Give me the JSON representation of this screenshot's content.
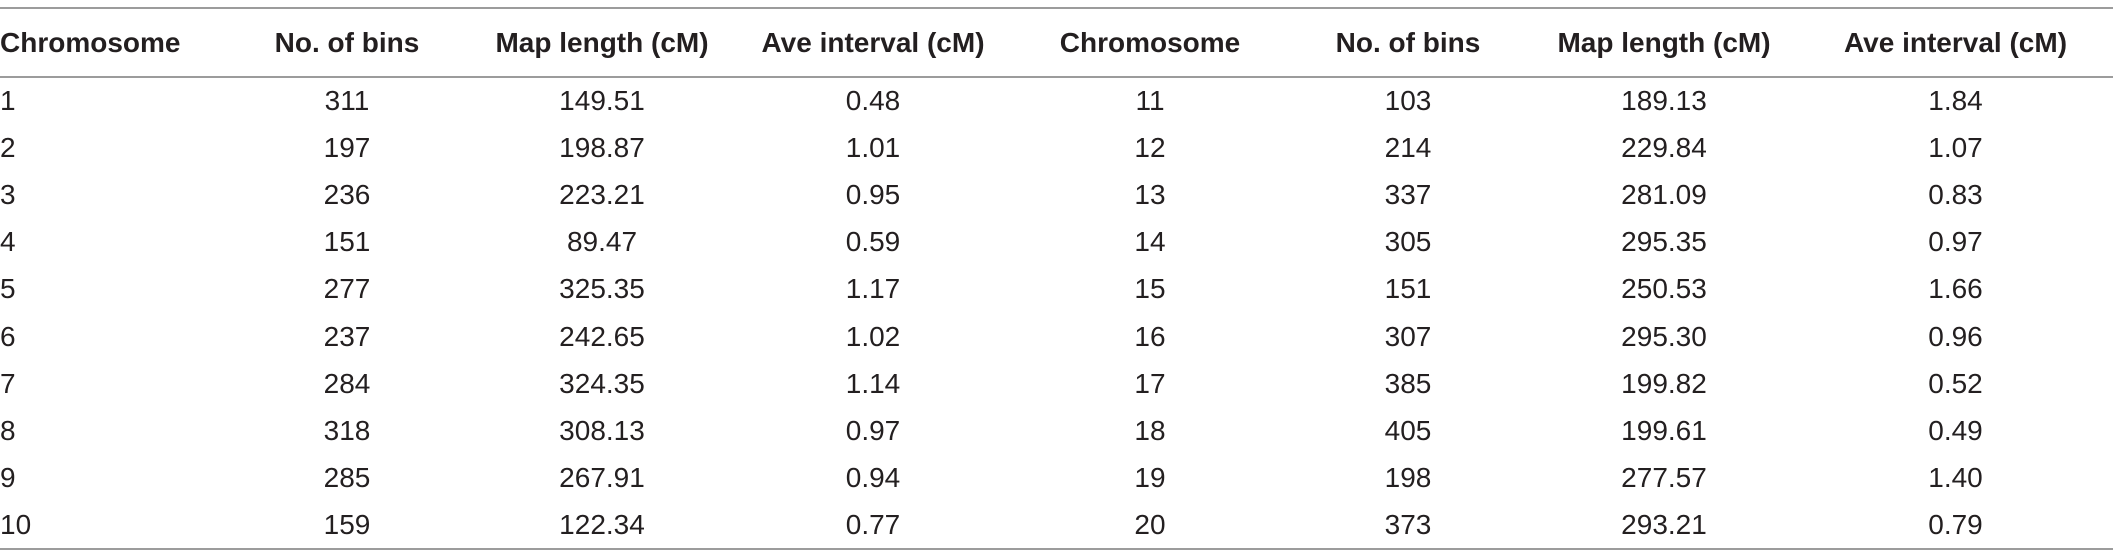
{
  "table": {
    "headers": [
      "Chromosome",
      "No. of bins",
      "Map length (cM)",
      "Ave interval (cM)",
      "Chromosome",
      "No. of bins",
      "Map length (cM)",
      "Ave interval (cM)"
    ],
    "rows": [
      [
        "1",
        "311",
        "149.51",
        "0.48",
        "11",
        "103",
        "189.13",
        "1.84"
      ],
      [
        "2",
        "197",
        "198.87",
        "1.01",
        "12",
        "214",
        "229.84",
        "1.07"
      ],
      [
        "3",
        "236",
        "223.21",
        "0.95",
        "13",
        "337",
        "281.09",
        "0.83"
      ],
      [
        "4",
        "151",
        "89.47",
        "0.59",
        "14",
        "305",
        "295.35",
        "0.97"
      ],
      [
        "5",
        "277",
        "325.35",
        "1.17",
        "15",
        "151",
        "250.53",
        "1.66"
      ],
      [
        "6",
        "237",
        "242.65",
        "1.02",
        "16",
        "307",
        "295.30",
        "0.96"
      ],
      [
        "7",
        "284",
        "324.35",
        "1.14",
        "17",
        "385",
        "199.82",
        "0.52"
      ],
      [
        "8",
        "318",
        "308.13",
        "0.97",
        "18",
        "405",
        "199.61",
        "0.49"
      ],
      [
        "9",
        "285",
        "267.91",
        "0.94",
        "19",
        "198",
        "277.57",
        "1.40"
      ],
      [
        "10",
        "159",
        "122.34",
        "0.77",
        "20",
        "373",
        "293.21",
        "0.79"
      ]
    ]
  }
}
